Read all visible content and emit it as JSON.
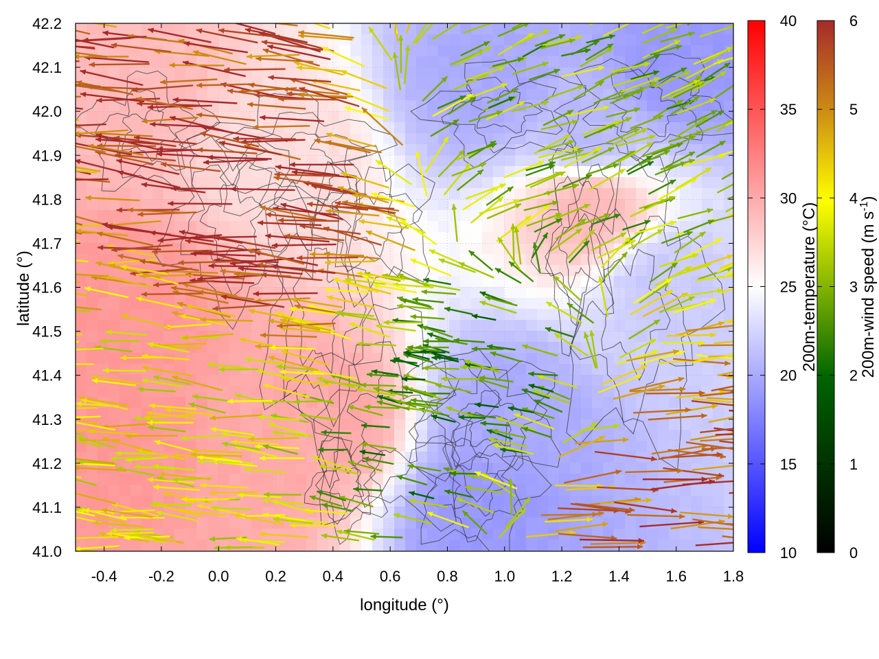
{
  "chart_data": {
    "type": "heatmap",
    "description_series": [
      "200m-temperature field (background)",
      "200m wind vectors (arrows)",
      "terrain contours"
    ],
    "xlabel": "longitude (°)",
    "ylabel": "latitude (°)",
    "xlim": [
      -0.5,
      1.8
    ],
    "ylim": [
      41.0,
      42.2
    ],
    "x_ticks": [
      "-0.4",
      "-0.2",
      "0.0",
      "0.2",
      "0.4",
      "0.6",
      "0.8",
      "1.0",
      "1.2",
      "1.4",
      "1.6",
      "1.8"
    ],
    "x_tick_values": [
      -0.4,
      -0.2,
      0.0,
      0.2,
      0.4,
      0.6,
      0.8,
      1.0,
      1.2,
      1.4,
      1.6,
      1.8
    ],
    "y_ticks": [
      "41.0",
      "41.1",
      "41.2",
      "41.3",
      "41.4",
      "41.5",
      "41.6",
      "41.7",
      "41.8",
      "41.9",
      "42.0",
      "42.1",
      "42.2"
    ],
    "y_tick_values": [
      41.0,
      41.1,
      41.2,
      41.3,
      41.4,
      41.5,
      41.6,
      41.7,
      41.8,
      41.9,
      42.0,
      42.1,
      42.2
    ],
    "grid": true,
    "temperature_colorbar": {
      "label": "200m-temperature (°C)",
      "range": [
        10,
        40
      ],
      "ticks": [
        "10",
        "15",
        "20",
        "25",
        "30",
        "35",
        "40"
      ],
      "tick_values": [
        10,
        15,
        20,
        25,
        30,
        35,
        40
      ],
      "colors": [
        "#0000ff",
        "#ffffff",
        "#ff0000"
      ]
    },
    "wind_colorbar": {
      "label_main": "200m-wind speed (m s",
      "label_sup": "-1",
      "label_end": ")",
      "range": [
        0,
        6
      ],
      "ticks": [
        "0",
        "1",
        "2",
        "3",
        "4",
        "5",
        "6"
      ],
      "tick_values": [
        0,
        1,
        2,
        3,
        4,
        5,
        6
      ],
      "colors": [
        "#000000",
        "#006400",
        "#ffff00",
        "#cd8c14",
        "#a52a2a"
      ]
    },
    "temperature_centers": [
      {
        "lon": -0.3,
        "lat": 41.55,
        "t": 31
      },
      {
        "lon": -0.3,
        "lat": 41.25,
        "t": 31
      },
      {
        "lon": 0.15,
        "lat": 41.2,
        "t": 30
      },
      {
        "lon": 0.4,
        "lat": 41.3,
        "t": 30
      },
      {
        "lon": -0.3,
        "lat": 42.05,
        "t": 29
      },
      {
        "lon": 0.2,
        "lat": 41.9,
        "t": 27
      },
      {
        "lon": 0.95,
        "lat": 42.07,
        "t": 20
      },
      {
        "lon": 1.3,
        "lat": 41.95,
        "t": 21
      },
      {
        "lon": 1.55,
        "lat": 41.6,
        "t": 22
      },
      {
        "lon": 1.0,
        "lat": 41.3,
        "t": 20
      },
      {
        "lon": 0.9,
        "lat": 41.1,
        "t": 19
      },
      {
        "lon": 1.3,
        "lat": 41.78,
        "t": 29
      },
      {
        "lon": 1.6,
        "lat": 42.1,
        "t": 19
      }
    ],
    "wind_regimes": [
      {
        "lon": 0.2,
        "lat": 41.8,
        "u": -1,
        "v": 0.08,
        "speed": 6
      },
      {
        "lon": 1.5,
        "lat": 41.1,
        "u": 1,
        "v": 0.02,
        "speed": 5.5
      },
      {
        "lon": -0.2,
        "lat": 41.35,
        "u": -1,
        "v": 0.1,
        "speed": 4
      },
      {
        "lon": 1.1,
        "lat": 41.95,
        "u": 0.5,
        "v": 0.2,
        "speed": 3
      },
      {
        "lon": 0.9,
        "lat": 41.35,
        "u": -0.6,
        "v": 0.1,
        "speed": 2.5
      }
    ]
  }
}
